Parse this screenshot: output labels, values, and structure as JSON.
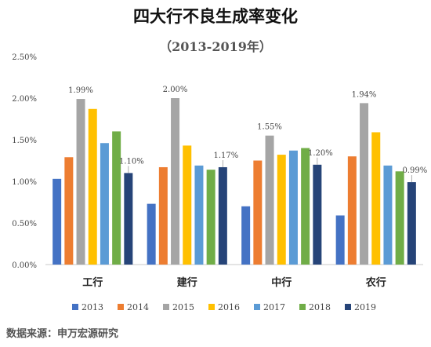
{
  "chart_data": {
    "type": "bar",
    "title": "四大行不良生成率变化",
    "subtitle": "（2013-2019年）",
    "categories": [
      "工行",
      "建行",
      "中行",
      "农行"
    ],
    "series": [
      {
        "name": "2013",
        "color": "#4472C4",
        "values": [
          1.03,
          0.73,
          0.7,
          0.59
        ]
      },
      {
        "name": "2014",
        "color": "#ED7D31",
        "values": [
          1.29,
          1.17,
          1.25,
          1.3
        ]
      },
      {
        "name": "2015",
        "color": "#A5A5A5",
        "values": [
          1.99,
          2.0,
          1.55,
          1.94
        ]
      },
      {
        "name": "2016",
        "color": "#FFC000",
        "values": [
          1.87,
          1.43,
          1.32,
          1.59
        ]
      },
      {
        "name": "2017",
        "color": "#5B9BD5",
        "values": [
          1.46,
          1.19,
          1.37,
          1.19
        ]
      },
      {
        "name": "2018",
        "color": "#70AD47",
        "values": [
          1.6,
          1.14,
          1.4,
          1.12
        ]
      },
      {
        "name": "2019",
        "color": "#264478",
        "values": [
          1.1,
          1.17,
          1.2,
          0.99
        ]
      }
    ],
    "data_labels": [
      {
        "category_index": 0,
        "series_index": 2,
        "text": "1.99%"
      },
      {
        "category_index": 0,
        "series_index": 6,
        "text": "1.10%"
      },
      {
        "category_index": 1,
        "series_index": 2,
        "text": "2.00%"
      },
      {
        "category_index": 1,
        "series_index": 6,
        "text": "1.17%"
      },
      {
        "category_index": 2,
        "series_index": 2,
        "text": "1.55%"
      },
      {
        "category_index": 2,
        "series_index": 6,
        "text": "1.20%"
      },
      {
        "category_index": 3,
        "series_index": 2,
        "text": "1.94%"
      },
      {
        "category_index": 3,
        "series_index": 6,
        "text": "0.99%"
      }
    ],
    "y_ticks": [
      "0.00%",
      "0.50%",
      "1.00%",
      "1.50%",
      "2.00%",
      "2.50%"
    ],
    "ylim": [
      0,
      2.5
    ],
    "grid": false,
    "legend_position": "bottom",
    "source": "数据来源：申万宏源研究"
  }
}
